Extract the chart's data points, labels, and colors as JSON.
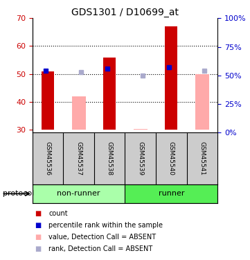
{
  "title": "GDS1301 / D10699_at",
  "samples": [
    "GSM45536",
    "GSM45537",
    "GSM45538",
    "GSM45539",
    "GSM45540",
    "GSM45541"
  ],
  "ylim_left": [
    29,
    70
  ],
  "ylim_right": [
    0,
    100
  ],
  "yticks_left": [
    30,
    40,
    50,
    60,
    70
  ],
  "yticks_right": [
    0,
    25,
    50,
    75,
    100
  ],
  "red_bars_bottom": [
    30,
    30,
    30,
    30,
    30,
    30
  ],
  "red_bars_top": [
    51,
    null,
    56,
    null,
    67,
    null
  ],
  "pink_bars_bottom": [
    30,
    30,
    30,
    30,
    30,
    30
  ],
  "pink_bars_top": [
    null,
    42,
    null,
    30.3,
    null,
    50
  ],
  "blue_squares_y": [
    54,
    null,
    56,
    null,
    57,
    null
  ],
  "light_blue_squares_y": [
    null,
    53,
    null,
    50,
    null,
    54
  ],
  "color_red": "#cc0000",
  "color_pink": "#ffaaaa",
  "color_blue": "#0000cc",
  "color_light_blue": "#aaaacc",
  "color_group_nonrunner": "#aaffaa",
  "color_group_runner": "#55ee55",
  "color_sample_bg": "#cccccc",
  "left_tick_color": "#cc0000",
  "right_tick_color": "#0000cc",
  "nonrunner_samples": [
    0,
    1,
    2
  ],
  "runner_samples": [
    3,
    4,
    5
  ],
  "legend_items": [
    {
      "color": "#cc0000",
      "label": "count"
    },
    {
      "color": "#0000cc",
      "label": "percentile rank within the sample"
    },
    {
      "color": "#ffaaaa",
      "label": "value, Detection Call = ABSENT"
    },
    {
      "color": "#aaaacc",
      "label": "rank, Detection Call = ABSENT"
    }
  ]
}
